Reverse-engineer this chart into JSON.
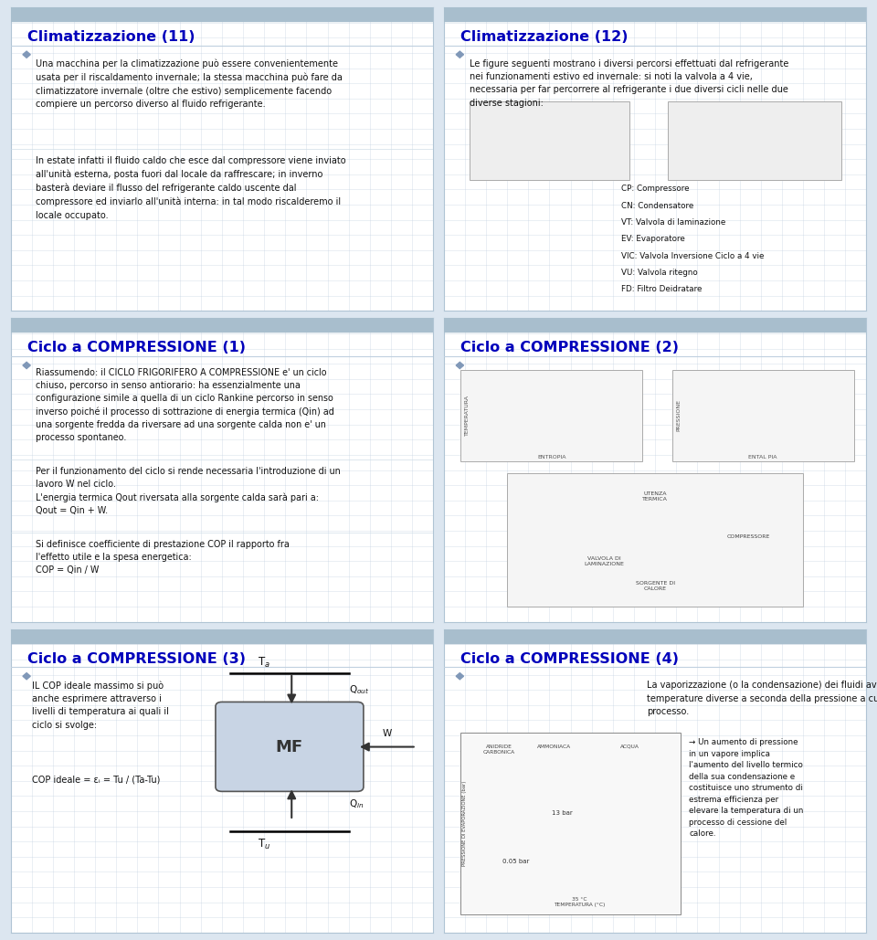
{
  "background_color": "#dce6f0",
  "panel_bg": "#ffffff",
  "title_color": "#0000bb",
  "text_color": "#000000",
  "grid_color": "#c0d0e0",
  "header_bar_color": "#a8becd",
  "panels": [
    {
      "title": "Climatizzazione (11)",
      "body_blocks": [
        "Una macchina per la climatizzazione può essere convenientemente\nusata per il riscaldamento invernale; la stessa macchina può fare da\nclimatizzatore invernale (oltre che estivo) semplicemente facendo\ncompiere un percorso diverso al fluido refrigerante.",
        "In estate infatti il fluido caldo che esce dal compressore viene inviato\nall'unità esterna, posta fuori dal locale da raffrescare; in inverno\nbasterà deviare il flusso del refrigerante caldo uscente dal\ncompressore ed inviarlo all'unità interna: in tal modo riscalderemo il\nlocale occupato."
      ]
    },
    {
      "title": "Climatizzazione (12)",
      "body_blocks": [
        "Le figure seguenti mostrano i diversi percorsi effettuati dal refrigerante\nnei funzionamenti estivo ed invernale: si noti la valvola a 4 vie,\nnecessaria per far percorrere al refrigerante i due diversi cicli nelle due\ndiverse stagioni:"
      ],
      "legend_lines": [
        "CP: Compressore",
        "CN: Condensatore",
        "VT: Valvola di laminazione",
        "EV: Evaporatore",
        "VIC: Valvola Inversione Ciclo a 4 vie",
        "VU: Valvola ritegno",
        "FD: Filtro Deidratare"
      ]
    },
    {
      "title": "Ciclo a COMPRESSIONE (1)",
      "body_blocks": [
        "Riassumendo: il CICLO FRIGORIFERO A COMPRESSIONE e' un ciclo\nchiuso, percorso in senso antiorario: ha essenzialmente una\nconfigurazione simile a quella di un ciclo Rankine percorso in senso\ninverso poiché il processo di sottrazione di energia termica (Qin) ad\nuna sorgente fredda da riversare ad una sorgente calda non e' un\nprocesso spontaneo.",
        "Per il funzionamento del ciclo si rende necessaria l'introduzione di un\nlavoro W nel ciclo.\nL'energia termica Qout riversata alla sorgente calda sarà pari a:\nQout = Qin + W.",
        "Si definisce coefficiente di prestazione COP il rapporto fra\nl'effetto utile e la spesa energetica:\nCOP = Qin / W"
      ]
    },
    {
      "title": "Ciclo a COMPRESSIONE (2)",
      "body_blocks": []
    },
    {
      "title": "Ciclo a COMPRESSIONE (3)",
      "text_left1": "IL COP ideale massimo si può\nanche esprimere attraverso i\nlivelli di temperatura ai quali il\nciclo si svolge:",
      "text_left2": "COP ideale = εᵢ = Tu / (Ta-Tu)",
      "body_blocks": []
    },
    {
      "title": "Ciclo a COMPRESSIONE (4)",
      "body_blocks": [
        "La vaporizzazione (o la condensazione) dei fluidi avviene a\ntemperature diverse a seconda della pressione a cui ha luogo il\nprocesso."
      ],
      "extra_text": "→ Un aumento di pressione\nin un vapore implica\nl'aumento del livello termico\ndella sua condensazione e\ncostituisce uno strumento di\nestrema efficienza per\nelevare la temperatura di un\nprocesso di cessione del\ncalore."
    }
  ]
}
